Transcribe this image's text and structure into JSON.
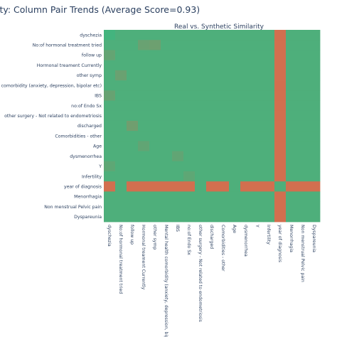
{
  "page_title": "ity: Column Pair Trends (Average Score=0.93)",
  "chart_data": {
    "type": "heatmap",
    "title": "Real vs. Synthetic Similarity",
    "labels": [
      "dyschezia",
      "No:of hormonal treatment tried",
      "follow up",
      "Hormonal treament Currently",
      "other symp",
      "mental health comorbidity (anxiety, depression, bipolar etc)",
      "IBS",
      "no:of Endo Sx",
      "other surgery - Not related to endometriosis",
      "discharged",
      "Comorbidities - other",
      "Age",
      "dysmenorrhea",
      "Y",
      "Infertility",
      "year of diagnosis",
      "Menorrhagia",
      "Non menstrual Pelvic pain",
      "Dyspareunia"
    ],
    "x_tick_labels": [
      "dyschezia",
      "No:of hormonal treatment tried",
      "follow up",
      "Hormonal treament Currently",
      "other symp",
      "Mental health comorbidity (anxiety, depression, bipola",
      "IBS",
      "no:of Endo Sx",
      "other surgery - Not related to endometriosis",
      "discharged",
      "Comorbidities - other",
      "Age",
      "dysmenorrhea",
      "Y",
      "Infertility",
      "year of diagnosis",
      "Menorrhagia",
      "Non menstrual Pelvic pain",
      "Dyspareunia"
    ],
    "colors": {
      "low": "#d96b4c",
      "high": "#43b47e"
    },
    "zrange": [
      0,
      1
    ],
    "default_value": 0.93,
    "low_row": "year of diagnosis",
    "low_row_value": 0.05,
    "low_row_exceptions": [
      {
        "col": "No:of hormonal treatment tried",
        "value": 0.93
      },
      {
        "col": "other surgery - Not related to endometriosis",
        "value": 0.93
      },
      {
        "col": "Age",
        "value": 0.93
      },
      {
        "col": "year of diagnosis",
        "value": 0.93
      }
    ],
    "cells": [
      {
        "row": "dyschezia",
        "col": "dyschezia",
        "value": 1.0
      },
      {
        "row": "No:of hormonal treatment tried",
        "col": "Hormonal treament Currently",
        "value": 0.75
      },
      {
        "row": "No:of hormonal treatment tried",
        "col": "other symp",
        "value": 0.72
      },
      {
        "row": "follow up",
        "col": "dyschezia",
        "value": 0.78
      },
      {
        "row": "other symp",
        "col": "No:of hormonal treatment tried",
        "value": 0.74
      },
      {
        "row": "IBS",
        "col": "dyschezia",
        "value": 0.76
      },
      {
        "row": "discharged",
        "col": "follow up",
        "value": 0.7
      },
      {
        "row": "Age",
        "col": "Hormonal treament Currently",
        "value": 0.8
      },
      {
        "row": "dysmenorrhea",
        "col": "IBS",
        "value": 0.8
      },
      {
        "row": "Y",
        "col": "dyschezia",
        "value": 0.82
      },
      {
        "row": "Infertility",
        "col": "no:of Endo Sx",
        "value": 0.82
      }
    ]
  }
}
